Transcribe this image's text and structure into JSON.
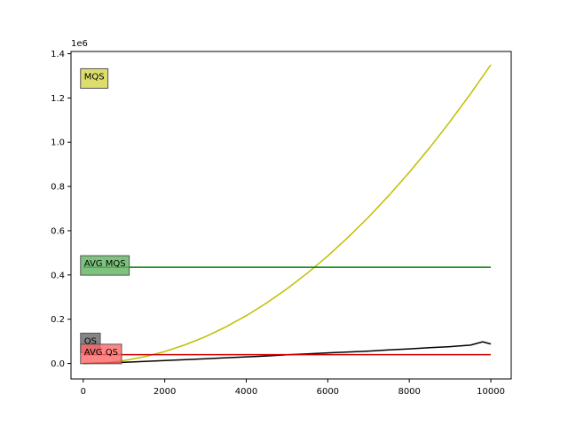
{
  "chart_data": {
    "type": "line",
    "title": "",
    "xlabel": "",
    "ylabel": "",
    "x_range": [
      -300,
      10500
    ],
    "y_range": [
      -70000,
      1410000
    ],
    "y_offset_label": "1e6",
    "x_ticks": [
      {
        "value": 0,
        "label": "0"
      },
      {
        "value": 2000,
        "label": "2000"
      },
      {
        "value": 4000,
        "label": "4000"
      },
      {
        "value": 6000,
        "label": "6000"
      },
      {
        "value": 8000,
        "label": "8000"
      },
      {
        "value": 10000,
        "label": "10000"
      }
    ],
    "y_ticks": [
      {
        "value": 0,
        "label": "0.0"
      },
      {
        "value": 200000,
        "label": "0.2"
      },
      {
        "value": 400000,
        "label": "0.4"
      },
      {
        "value": 600000,
        "label": "0.6"
      },
      {
        "value": 800000,
        "label": "0.8"
      },
      {
        "value": 1000000,
        "label": "1.0"
      },
      {
        "value": 1200000,
        "label": "1.2"
      },
      {
        "value": 1400000,
        "label": "1.4"
      }
    ],
    "grid": false,
    "series": [
      {
        "color": "#bfbf00",
        "x": [
          0,
          500,
          1000,
          1500,
          2000,
          2500,
          3000,
          3500,
          4000,
          4500,
          5000,
          5500,
          6000,
          6500,
          7000,
          7500,
          8000,
          8500,
          9000,
          9500,
          10000
        ],
        "y": [
          0,
          3400,
          13500,
          30300,
          54000,
          84300,
          121500,
          165400,
          216000,
          273400,
          337500,
          408400,
          486000,
          570400,
          661500,
          759400,
          864000,
          975400,
          1093500,
          1218400,
          1350000
        ]
      },
      {
        "color": "#000000",
        "x": [
          0,
          500,
          1000,
          1500,
          2000,
          2500,
          3000,
          3500,
          4000,
          4500,
          5000,
          5500,
          6000,
          6500,
          7000,
          7500,
          8000,
          8500,
          9000,
          9500,
          9800,
          10000
        ],
        "y": [
          0,
          2000,
          5000,
          9000,
          13000,
          17000,
          21000,
          26000,
          30000,
          34000,
          39000,
          43000,
          48000,
          52000,
          56000,
          61000,
          66000,
          71000,
          76000,
          83000,
          98000,
          88000
        ]
      },
      {
        "color": "#008000",
        "x": [
          0,
          10000
        ],
        "y": [
          435000,
          435000
        ]
      },
      {
        "color": "#cc0000",
        "x": [
          0,
          10000
        ],
        "y": [
          40000,
          40000
        ]
      }
    ],
    "annotations": [
      {
        "text": "MQS",
        "x": 0,
        "y": 1300000,
        "color": "#d4d44a"
      },
      {
        "text": "AVG MQS",
        "x": 0,
        "y": 455000,
        "color": "#5fb35f"
      },
      {
        "text": "QS",
        "x": 0,
        "y": 105000,
        "color": "#666666"
      },
      {
        "text": "AVG QS",
        "x": 0,
        "y": 55000,
        "color": "#ff6666"
      }
    ]
  }
}
